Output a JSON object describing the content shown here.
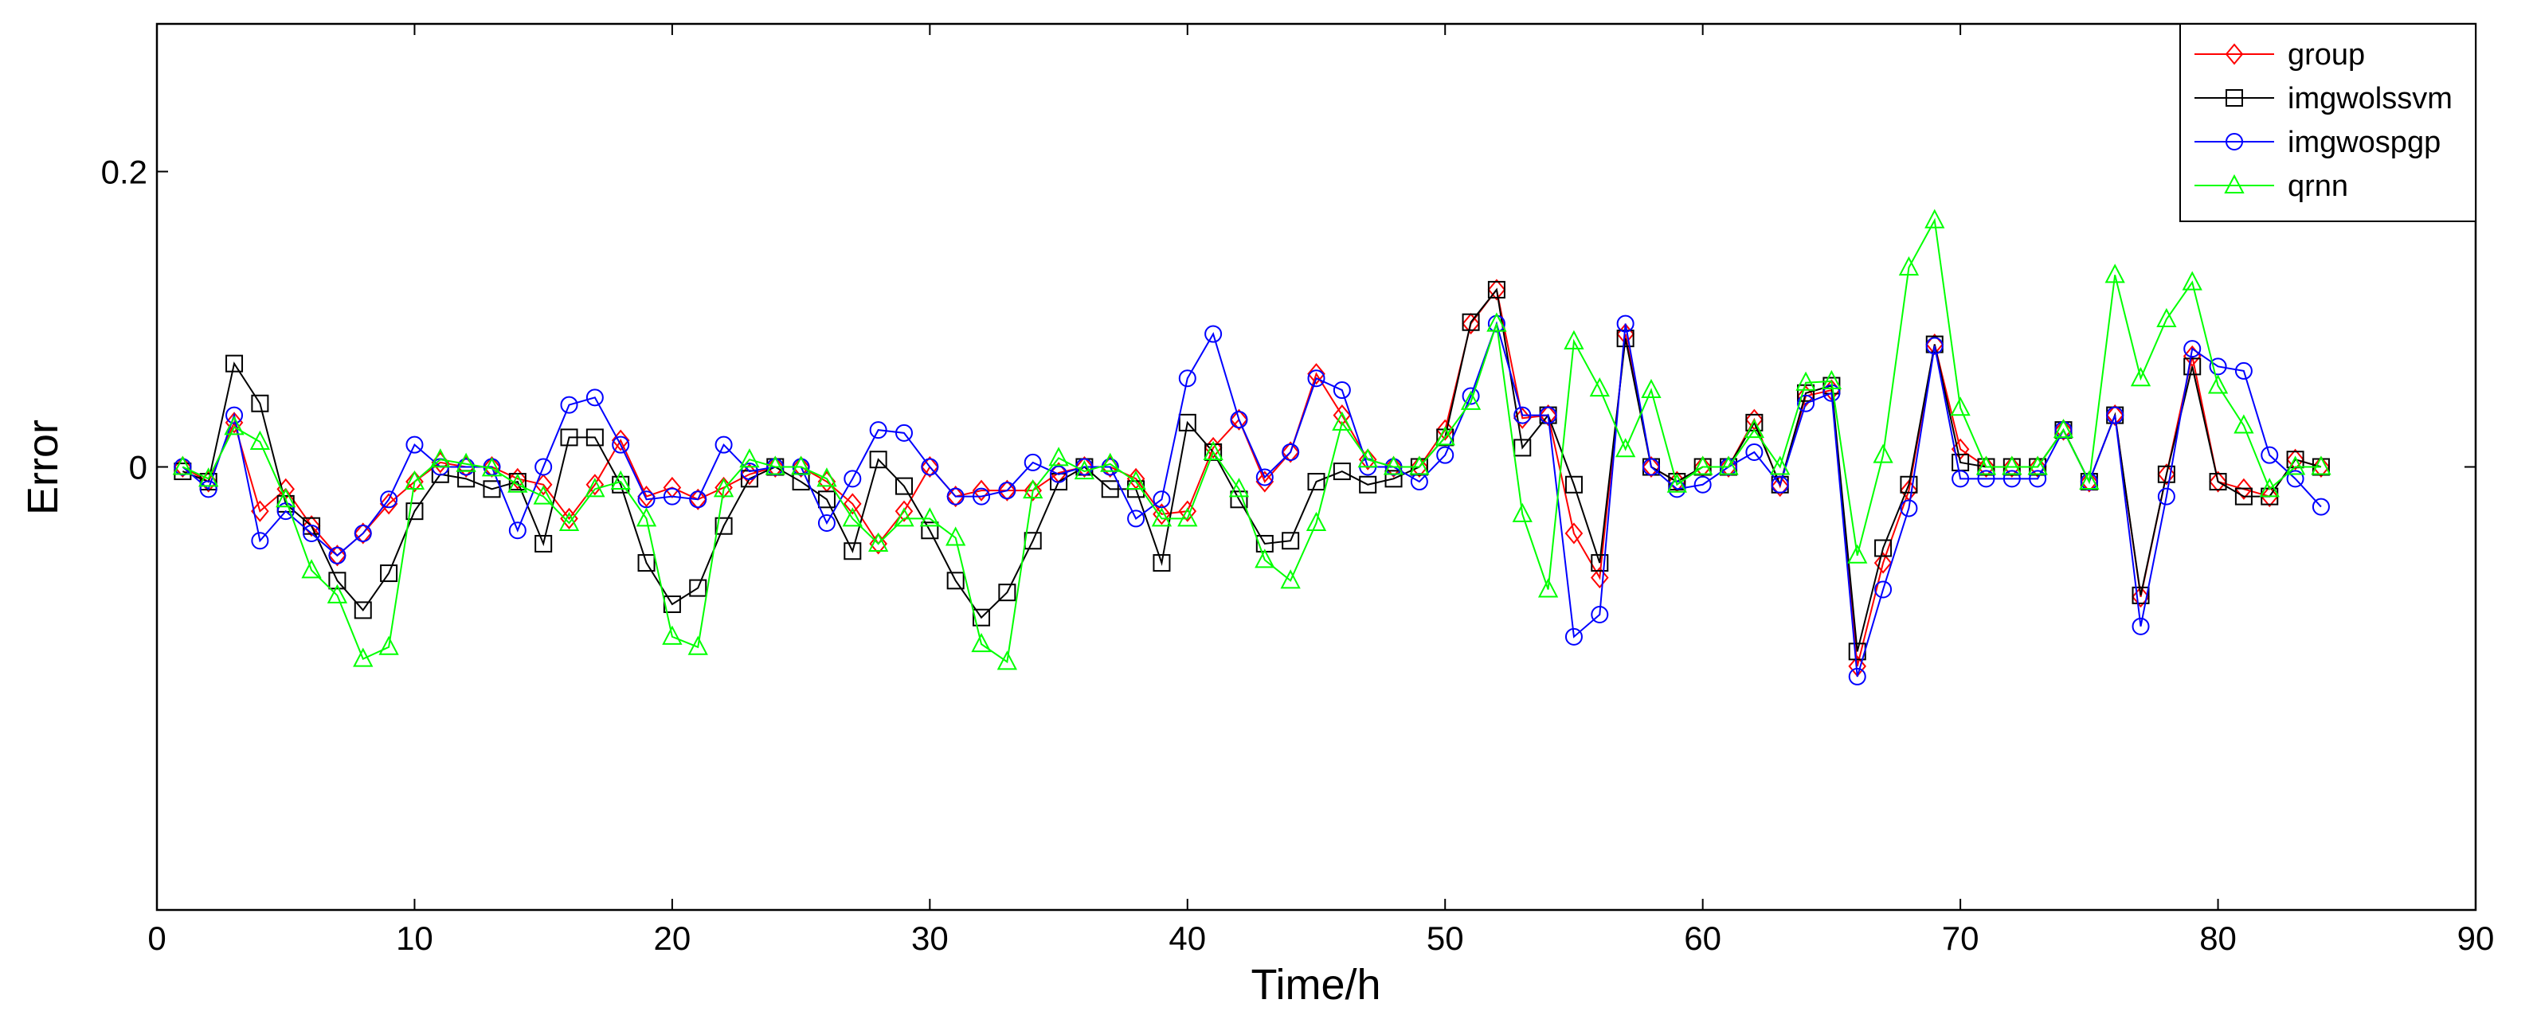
{
  "chart_data": {
    "type": "line",
    "title": "",
    "xlabel": "Time/h",
    "ylabel": "Error",
    "xlim": [
      0,
      90
    ],
    "ylim": [
      -0.3,
      0.3
    ],
    "xticks": [
      0,
      10,
      20,
      30,
      40,
      50,
      60,
      70,
      80,
      90
    ],
    "yticks": [
      0,
      0.2
    ],
    "ytick_labels": [
      "0",
      "0.2"
    ],
    "grid": false,
    "legend_position": "top-right",
    "x": [
      1,
      2,
      3,
      4,
      5,
      6,
      7,
      8,
      9,
      10,
      11,
      12,
      13,
      14,
      15,
      16,
      17,
      18,
      19,
      20,
      21,
      22,
      23,
      24,
      25,
      26,
      27,
      28,
      29,
      30,
      31,
      32,
      33,
      34,
      35,
      36,
      37,
      38,
      39,
      40,
      41,
      42,
      43,
      44,
      45,
      46,
      47,
      48,
      49,
      50,
      51,
      52,
      53,
      54,
      55,
      56,
      57,
      58,
      59,
      60,
      61,
      62,
      63,
      64,
      65,
      66,
      67,
      68,
      69,
      70,
      71,
      72,
      73,
      74,
      75,
      76,
      77,
      78,
      79,
      80,
      81,
      82,
      83,
      84
    ],
    "series": [
      {
        "name": "group",
        "color": "#ff0000",
        "marker": "diamond",
        "values": [
          0,
          -0.01,
          0.03,
          -0.03,
          -0.015,
          -0.04,
          -0.06,
          -0.045,
          -0.025,
          -0.01,
          0.003,
          0,
          0,
          -0.008,
          -0.012,
          -0.035,
          -0.012,
          0.018,
          -0.02,
          -0.014,
          -0.022,
          -0.014,
          -0.005,
          0,
          0,
          -0.01,
          -0.025,
          -0.052,
          -0.03,
          0,
          -0.02,
          -0.016,
          -0.016,
          -0.016,
          -0.004,
          0,
          0,
          -0.008,
          -0.032,
          -0.03,
          0.013,
          0.032,
          -0.01,
          0.01,
          0.063,
          0.035,
          0.005,
          0,
          0,
          0.025,
          0.097,
          0.12,
          0.033,
          0.035,
          -0.045,
          -0.075,
          0.09,
          0,
          -0.01,
          0,
          0,
          0.032,
          -0.013,
          0.048,
          0.052,
          -0.135,
          -0.065,
          -0.016,
          0.083,
          0.012,
          0,
          0,
          0,
          0.025,
          -0.01,
          0.035,
          -0.088,
          -0.005,
          0.075,
          -0.01,
          -0.015,
          -0.02,
          0.005,
          0
        ]
      },
      {
        "name": "imgwolssvm",
        "color": "#000000",
        "marker": "square",
        "values": [
          -0.003,
          -0.01,
          0.07,
          0.043,
          -0.025,
          -0.04,
          -0.077,
          -0.097,
          -0.072,
          -0.03,
          -0.005,
          -0.008,
          -0.015,
          -0.01,
          -0.052,
          0.02,
          0.02,
          -0.012,
          -0.065,
          -0.093,
          -0.082,
          -0.04,
          -0.008,
          0,
          -0.01,
          -0.022,
          -0.057,
          0.005,
          -0.013,
          -0.043,
          -0.077,
          -0.102,
          -0.085,
          -0.05,
          -0.01,
          0,
          -0.015,
          -0.015,
          -0.065,
          0.03,
          0.01,
          -0.022,
          -0.052,
          -0.05,
          -0.01,
          -0.003,
          -0.012,
          -0.008,
          0,
          0.02,
          0.098,
          0.12,
          0.013,
          0.035,
          -0.012,
          -0.065,
          0.087,
          0,
          -0.01,
          0,
          0,
          0.03,
          -0.012,
          0.05,
          0.055,
          -0.125,
          -0.055,
          -0.012,
          0.083,
          0.003,
          0,
          0,
          0,
          0.025,
          -0.01,
          0.035,
          -0.087,
          -0.005,
          0.068,
          -0.01,
          -0.02,
          -0.02,
          0.005,
          0
        ]
      },
      {
        "name": "imgwospgp",
        "color": "#0000ff",
        "marker": "circle",
        "values": [
          0,
          -0.015,
          0.035,
          -0.05,
          -0.03,
          -0.045,
          -0.06,
          -0.045,
          -0.022,
          0.015,
          0,
          0,
          0,
          -0.043,
          0,
          0.042,
          0.047,
          0.015,
          -0.022,
          -0.02,
          -0.022,
          0.015,
          -0.003,
          0,
          0,
          -0.038,
          -0.008,
          0.025,
          0.023,
          0,
          -0.02,
          -0.02,
          -0.016,
          0.003,
          -0.005,
          0,
          0,
          -0.035,
          -0.022,
          0.06,
          0.09,
          0.032,
          -0.007,
          0.01,
          0.06,
          0.052,
          0,
          0,
          -0.01,
          0.008,
          0.048,
          0.097,
          0.035,
          0.035,
          -0.115,
          -0.1,
          0.097,
          0,
          -0.015,
          -0.012,
          0,
          0.01,
          -0.012,
          0.043,
          0.05,
          -0.142,
          -0.083,
          -0.028,
          0.082,
          -0.008,
          -0.008,
          -0.008,
          -0.008,
          0.025,
          -0.01,
          0.035,
          -0.108,
          -0.02,
          0.08,
          0.068,
          0.065,
          0.008,
          -0.008,
          -0.027
        ]
      },
      {
        "name": "qrnn",
        "color": "#00ff00",
        "marker": "triangle",
        "values": [
          0,
          -0.008,
          0.027,
          0.017,
          -0.022,
          -0.07,
          -0.087,
          -0.13,
          -0.122,
          -0.01,
          0.005,
          0.002,
          -0.001,
          -0.012,
          -0.02,
          -0.038,
          -0.015,
          -0.01,
          -0.035,
          -0.115,
          -0.122,
          -0.015,
          0.005,
          0,
          0,
          -0.008,
          -0.035,
          -0.052,
          -0.035,
          -0.035,
          -0.048,
          -0.12,
          -0.132,
          -0.016,
          0.006,
          -0.003,
          0.002,
          -0.01,
          -0.035,
          -0.035,
          0.01,
          -0.015,
          -0.063,
          -0.077,
          -0.038,
          0.03,
          0.005,
          0,
          0,
          0.02,
          0.044,
          0.097,
          -0.032,
          -0.083,
          0.085,
          0.053,
          0.012,
          0.052,
          -0.012,
          0,
          0,
          0.025,
          0,
          0.057,
          0.058,
          -0.06,
          0.008,
          0.135,
          0.167,
          0.04,
          0,
          0,
          0,
          0.025,
          -0.01,
          0.13,
          0.06,
          0.1,
          0.125,
          0.055,
          0.028,
          -0.015,
          0,
          0
        ]
      }
    ]
  }
}
